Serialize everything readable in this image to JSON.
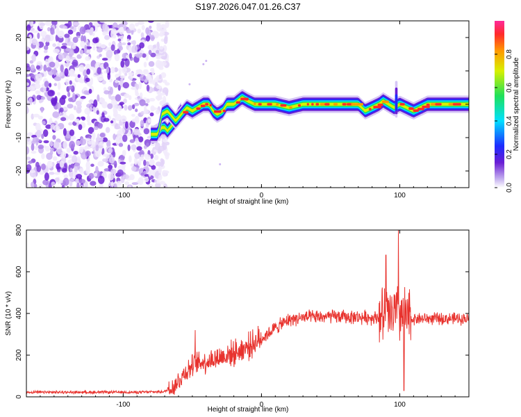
{
  "title": "S197.2026.047.01.26.C37",
  "chart_data": [
    {
      "type": "heatmap",
      "name": "spectrogram",
      "xlabel": "Height of straight line (km)",
      "ylabel": "Frequency (Hz)",
      "xlim": [
        -170,
        150
      ],
      "ylim": [
        -25,
        25
      ],
      "xticks": [
        -100,
        0,
        100
      ],
      "yticks": [
        -20,
        -10,
        0,
        10,
        20
      ],
      "colorbar": {
        "label": "Normalized spectral amplitude",
        "range": [
          0,
          1
        ],
        "ticks": [
          "0.0",
          "0.2",
          "0.4",
          "0.6",
          "0.8"
        ]
      },
      "noise_region_x": [
        -170,
        -73
      ],
      "ridge": {
        "x": [
          -80,
          -75,
          -72,
          -68,
          -62,
          -58,
          -54,
          -50,
          -46,
          -42,
          -38,
          -35,
          -32,
          -28,
          -25,
          -20,
          -17,
          -14,
          -10,
          -5,
          0,
          10,
          20,
          30,
          40,
          50,
          60,
          70,
          75,
          80,
          85,
          88,
          92,
          96,
          100,
          105,
          110,
          115,
          120,
          130,
          140,
          150
        ],
        "freq_hz": [
          -9,
          -9,
          -3,
          -2,
          -5,
          -3,
          -1,
          -2,
          -1,
          0,
          0,
          -2,
          -3,
          -2,
          0,
          0,
          1,
          2,
          1,
          0,
          0,
          0,
          -1,
          0,
          0,
          0,
          0,
          0,
          -2,
          -1,
          0,
          1,
          0,
          -1,
          0,
          -1,
          -2,
          -1,
          0,
          0,
          0,
          0
        ]
      },
      "lower_branch": {
        "x": [
          -78,
          -74,
          -72,
          -70,
          -68,
          -66,
          -64,
          -62,
          -60,
          -58
        ],
        "freq_hz": [
          -9,
          -8,
          -7,
          -7,
          -8,
          -7,
          -6,
          -5,
          -3,
          -2
        ]
      }
    },
    {
      "type": "line",
      "name": "snr",
      "xlabel": "Height of straight line (km)",
      "ylabel": "SNR (10 * v/v)",
      "xlim": [
        -170,
        150
      ],
      "ylim": [
        0,
        800
      ],
      "xticks": [
        -100,
        0,
        100
      ],
      "yticks": [
        0,
        200,
        400,
        600,
        800
      ],
      "color": "#e8322d",
      "trend": {
        "x": [
          -170,
          -90,
          -70,
          -62,
          -55,
          -48,
          -40,
          -30,
          -20,
          -10,
          0,
          10,
          20,
          30,
          50,
          80,
          90,
          95,
          100,
          105,
          110,
          130,
          150
        ],
        "y": [
          22,
          22,
          25,
          60,
          120,
          160,
          170,
          190,
          210,
          240,
          280,
          330,
          370,
          380,
          385,
          380,
          385,
          390,
          400,
          370,
          375,
          375,
          375
        ]
      },
      "peaks": [
        {
          "x": -48,
          "y": 320
        },
        {
          "x": 90,
          "y": 680
        },
        {
          "x": 99,
          "y": 800
        },
        {
          "x": 103,
          "y": 30
        }
      ]
    }
  ]
}
